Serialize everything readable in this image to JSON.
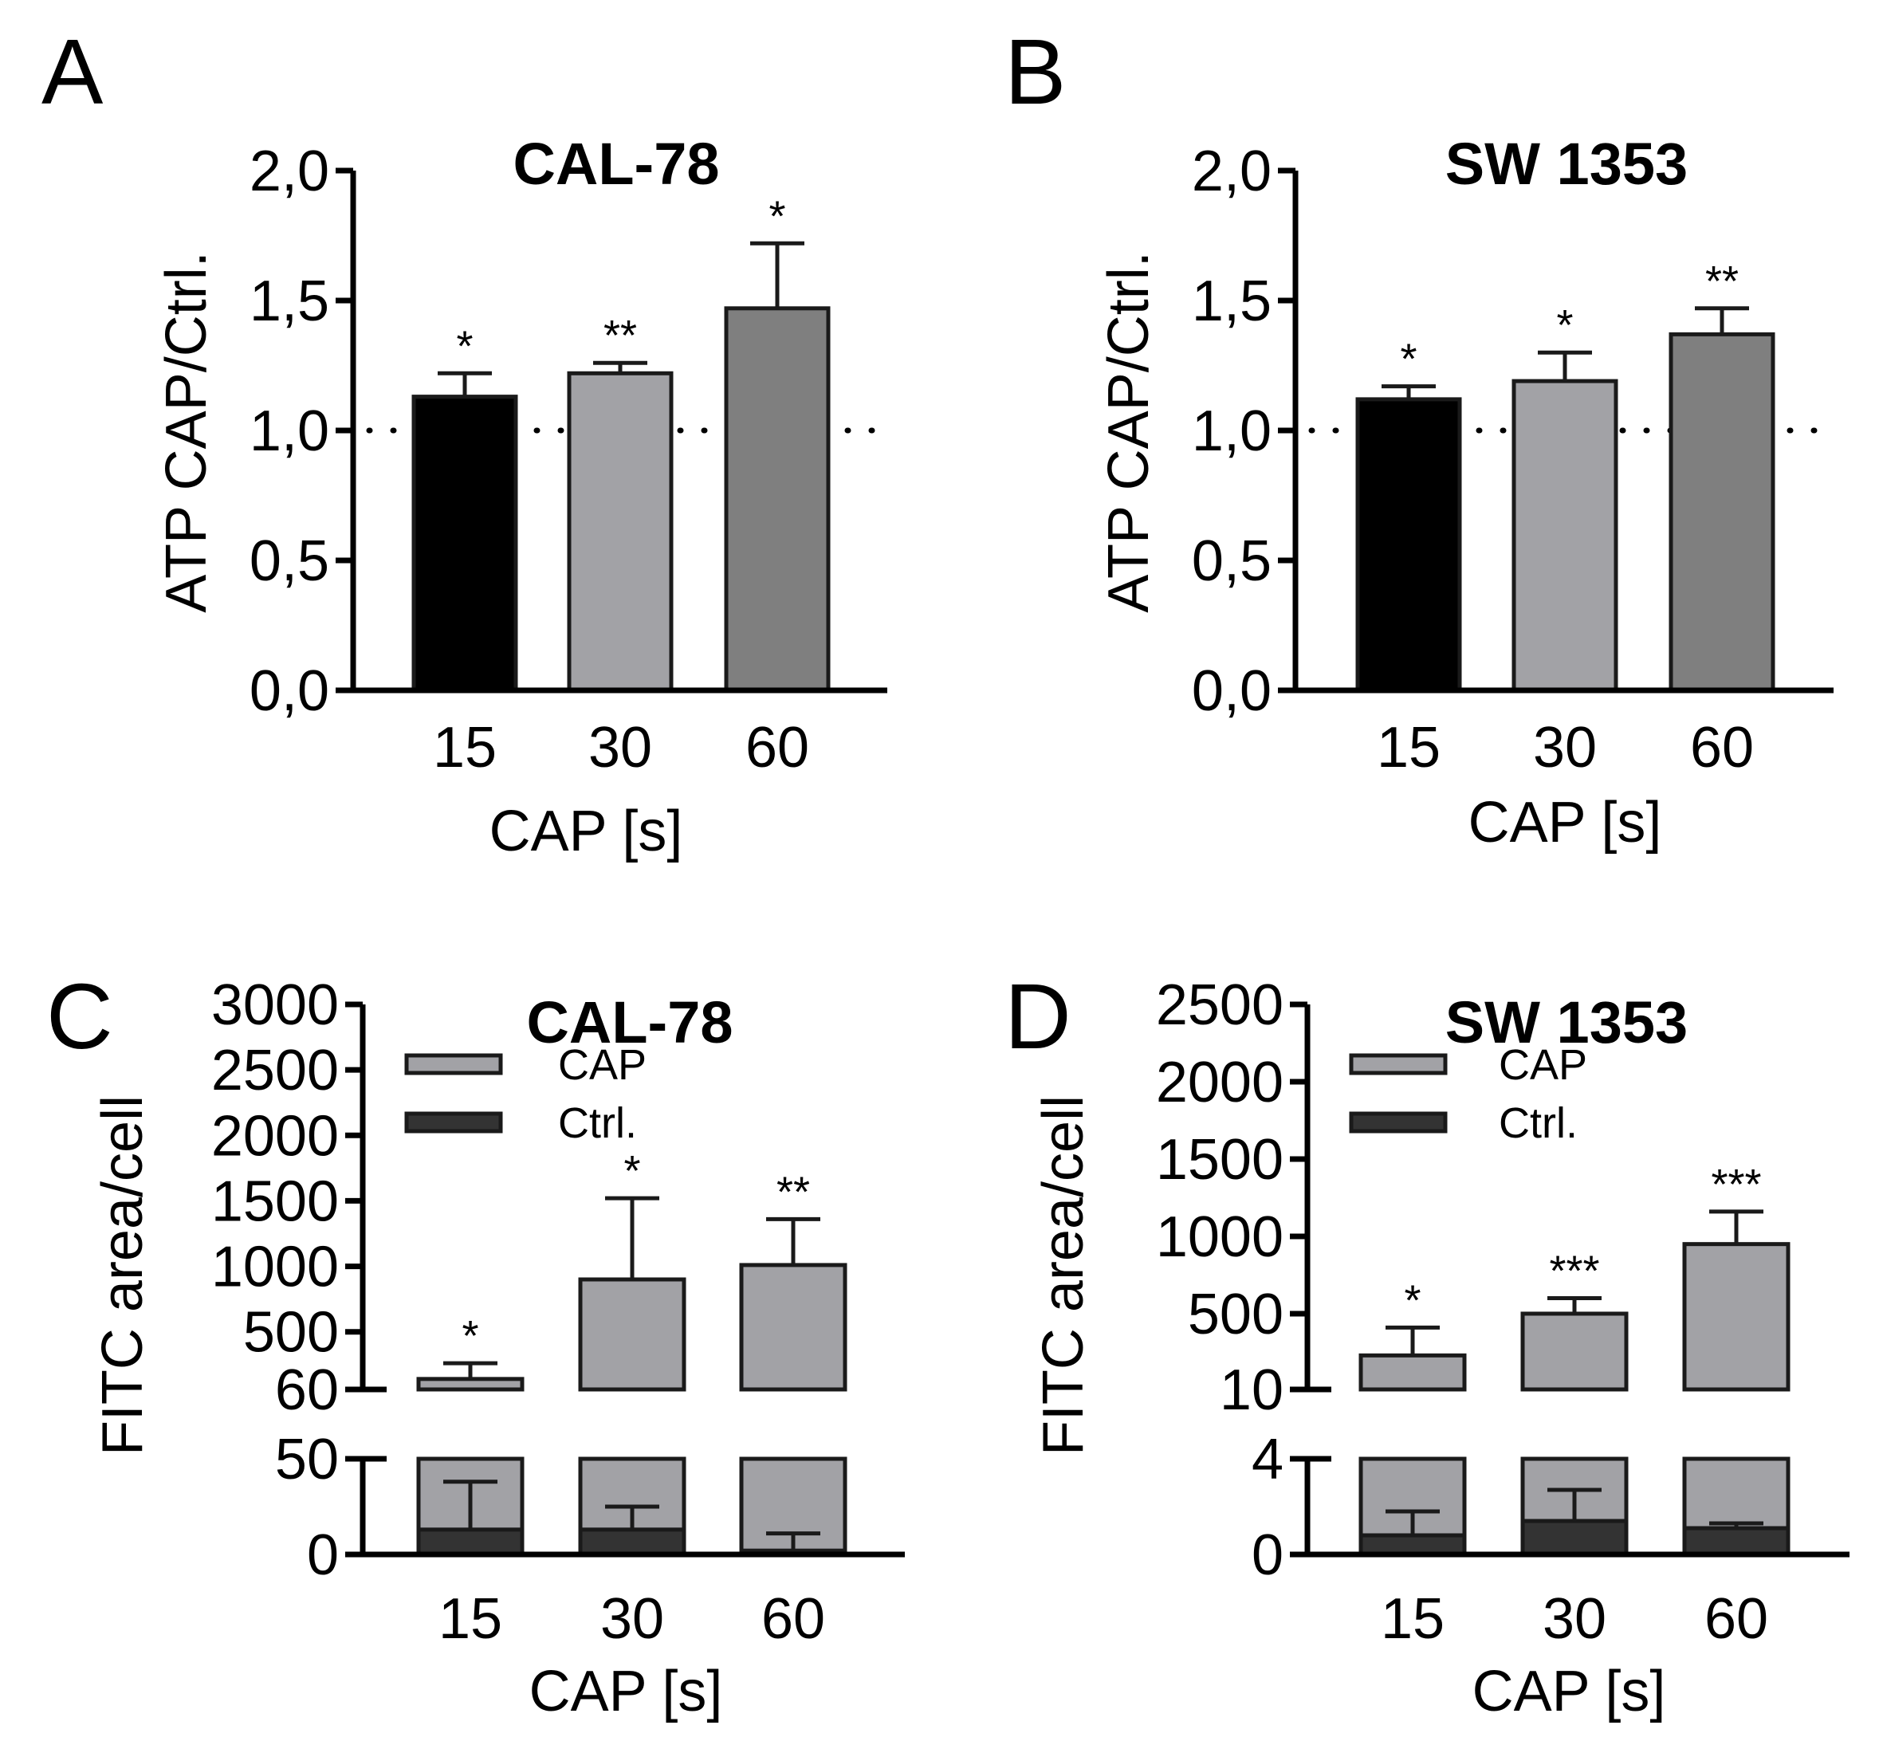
{
  "chart_data": [
    {
      "panel": "A",
      "type": "bar",
      "title": "CAL-78",
      "ylabel": "ATP CAP/Ctrl.",
      "xlabel": "CAP [s]",
      "categories": [
        "15",
        "30",
        "60"
      ],
      "values": [
        1.13,
        1.22,
        1.47
      ],
      "errors": [
        0.09,
        0.04,
        0.25
      ],
      "significance": [
        "*",
        "**",
        "*"
      ],
      "bar_colors": [
        "#000000",
        "#a2a2a6",
        "#7f7f7f"
      ],
      "ylim": [
        0,
        2.0
      ],
      "yticks": [
        0,
        0.5,
        1.0,
        1.5,
        2.0
      ],
      "ytick_labels": [
        "0,0",
        "0,5",
        "1,0",
        "1,5",
        "2,0"
      ],
      "reference_line": 1.0
    },
    {
      "panel": "B",
      "type": "bar",
      "title": "SW 1353",
      "ylabel": "ATP CAP/Ctrl.",
      "xlabel": "CAP [s]",
      "categories": [
        "15",
        "30",
        "60"
      ],
      "values": [
        1.12,
        1.19,
        1.37
      ],
      "errors": [
        0.05,
        0.11,
        0.1
      ],
      "significance": [
        "*",
        "*",
        "**"
      ],
      "bar_colors": [
        "#000000",
        "#a2a2a6",
        "#7f7f7f"
      ],
      "ylim": [
        0,
        2.0
      ],
      "yticks": [
        0,
        0.5,
        1.0,
        1.5,
        2.0
      ],
      "ytick_labels": [
        "0,0",
        "0,5",
        "1,0",
        "1,5",
        "2,0"
      ],
      "reference_line": 1.0
    },
    {
      "panel": "C",
      "type": "bar",
      "title": "CAL-78",
      "ylabel": "FITC area/cell",
      "xlabel": "CAP [s]",
      "categories": [
        "15",
        "30",
        "60"
      ],
      "series": [
        {
          "name": "CAP",
          "color": "#a2a2a6",
          "values": [
            140,
            900,
            1010
          ],
          "errors": [
            120,
            620,
            350
          ]
        },
        {
          "name": "Ctrl.",
          "color": "#333333",
          "values": [
            13,
            13,
            2
          ],
          "errors": [
            25,
            12,
            9
          ]
        }
      ],
      "significance": [
        "*",
        "*",
        "**"
      ],
      "broken_axis": {
        "lower": {
          "range": [
            0,
            50
          ],
          "ticks": [
            0,
            50
          ],
          "tick_labels": [
            "0",
            "50"
          ]
        },
        "upper": {
          "range": [
            60,
            3000
          ],
          "ticks": [
            60,
            500,
            1000,
            1500,
            2000,
            2500,
            3000
          ],
          "tick_labels": [
            "60",
            "500",
            "1000",
            "1500",
            "2000",
            "2500",
            "3000"
          ]
        }
      }
    },
    {
      "panel": "D",
      "type": "bar",
      "title": "SW 1353",
      "ylabel": "FITC area/cell",
      "xlabel": "CAP [s]",
      "categories": [
        "15",
        "30",
        "60"
      ],
      "series": [
        {
          "name": "CAP",
          "color": "#a2a2a6",
          "values": [
            230,
            500,
            950
          ],
          "errors": [
            180,
            100,
            210
          ]
        },
        {
          "name": "Ctrl.",
          "color": "#333333",
          "values": [
            0.8,
            1.4,
            1.1
          ],
          "errors": [
            1.0,
            1.3,
            0.2
          ]
        }
      ],
      "significance": [
        "*",
        "***",
        "***"
      ],
      "broken_axis": {
        "lower": {
          "range": [
            0,
            4
          ],
          "ticks": [
            0,
            4
          ],
          "tick_labels": [
            "0",
            "4"
          ]
        },
        "upper": {
          "range": [
            10,
            2500
          ],
          "ticks": [
            10,
            500,
            1000,
            1500,
            2000,
            2500
          ],
          "tick_labels": [
            "10",
            "500",
            "1000",
            "1500",
            "2000",
            "2500"
          ]
        }
      }
    }
  ]
}
